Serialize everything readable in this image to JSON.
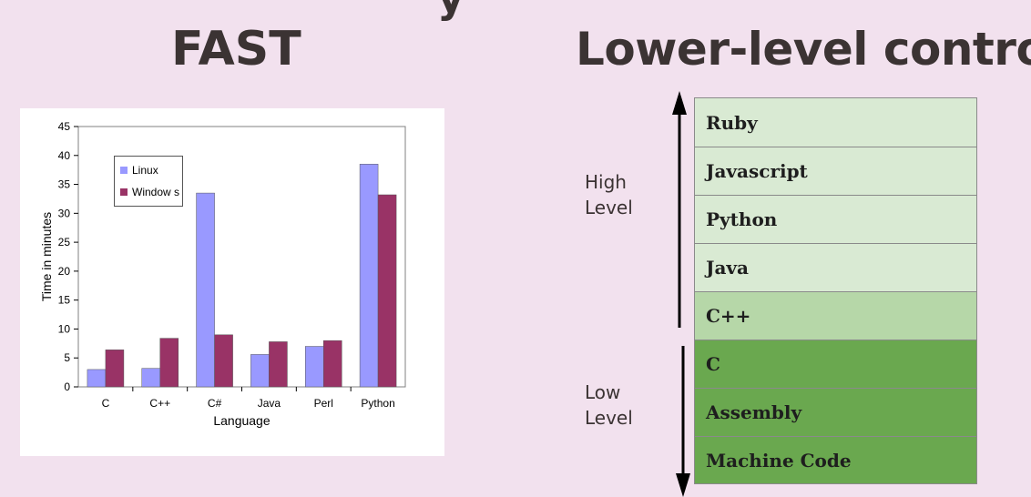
{
  "slide": {
    "title_fragment": "y",
    "left_heading": "FAST",
    "right_heading": "Lower-level control"
  },
  "chart_data": {
    "type": "bar",
    "title": "",
    "xlabel": "Language",
    "ylabel": "Time in minutes",
    "categories": [
      "C",
      "C++",
      "C#",
      "Java",
      "Perl",
      "Python"
    ],
    "series": [
      {
        "name": "Linux",
        "color": "#9999ff",
        "values": [
          3,
          3.2,
          33.5,
          5.6,
          7.0,
          38.5
        ]
      },
      {
        "name": "Window s",
        "color": "#993366",
        "values": [
          6.4,
          8.4,
          9.0,
          7.8,
          8.0,
          33.2
        ]
      }
    ],
    "ylim": [
      0,
      45
    ],
    "yticks": [
      0,
      5,
      10,
      15,
      20,
      25,
      30,
      35,
      40,
      45
    ],
    "grid": false,
    "legend_position": "top-left"
  },
  "levels": {
    "high_label": "High\nLevel",
    "low_label": "Low\nLevel"
  },
  "language_stack": [
    {
      "label": "Ruby",
      "tier": "high",
      "color": "#d9ead3"
    },
    {
      "label": "Javascript",
      "tier": "high",
      "color": "#d9ead3"
    },
    {
      "label": "Python",
      "tier": "high",
      "color": "#d9ead3"
    },
    {
      "label": "Java",
      "tier": "high",
      "color": "#d9ead3"
    },
    {
      "label": "C++",
      "tier": "mid",
      "color": "#b6d7a8"
    },
    {
      "label": "C",
      "tier": "low",
      "color": "#6aa84f"
    },
    {
      "label": "Assembly",
      "tier": "low",
      "color": "#6aa84f"
    },
    {
      "label": "Machine Code",
      "tier": "low",
      "color": "#6aa84f"
    }
  ]
}
